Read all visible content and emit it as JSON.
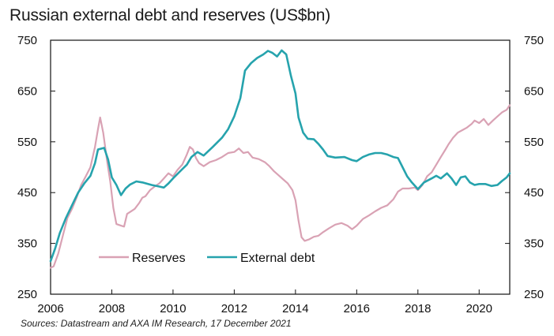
{
  "chart_data": {
    "type": "line",
    "title": "Russian external debt and reserves (US$bn)",
    "source": "Sources: Datastream and AXA IM Research, 17 December 2021",
    "xlim": [
      2006,
      2021
    ],
    "ylim": [
      250,
      750
    ],
    "x_ticks": [
      "2006",
      "2008",
      "2010",
      "2012",
      "2014",
      "2016",
      "2018",
      "2020"
    ],
    "y_ticks_left": [
      "750",
      "650",
      "550",
      "450",
      "350",
      "250"
    ],
    "y_ticks_right": [
      "750",
      "650",
      "550",
      "450",
      "350",
      "250"
    ],
    "legend_position": "bottom-left",
    "series": [
      {
        "name": "Reserves",
        "color": "#d9a2b4",
        "points": [
          [
            2006.0,
            302
          ],
          [
            2006.1,
            305
          ],
          [
            2006.25,
            330
          ],
          [
            2006.4,
            365
          ],
          [
            2006.55,
            400
          ],
          [
            2006.7,
            418
          ],
          [
            2006.85,
            440
          ],
          [
            2007.0,
            465
          ],
          [
            2007.15,
            482
          ],
          [
            2007.3,
            500
          ],
          [
            2007.45,
            540
          ],
          [
            2007.55,
            575
          ],
          [
            2007.62,
            598
          ],
          [
            2007.72,
            568
          ],
          [
            2007.85,
            510
          ],
          [
            2007.95,
            472
          ],
          [
            2008.05,
            420
          ],
          [
            2008.15,
            388
          ],
          [
            2008.3,
            385
          ],
          [
            2008.4,
            383
          ],
          [
            2008.5,
            408
          ],
          [
            2008.6,
            412
          ],
          [
            2008.75,
            418
          ],
          [
            2008.9,
            430
          ],
          [
            2009.0,
            440
          ],
          [
            2009.1,
            443
          ],
          [
            2009.25,
            455
          ],
          [
            2009.4,
            462
          ],
          [
            2009.55,
            468
          ],
          [
            2009.7,
            478
          ],
          [
            2009.85,
            488
          ],
          [
            2010.0,
            482
          ],
          [
            2010.15,
            495
          ],
          [
            2010.3,
            505
          ],
          [
            2010.45,
            525
          ],
          [
            2010.55,
            540
          ],
          [
            2010.65,
            535
          ],
          [
            2010.75,
            518
          ],
          [
            2010.85,
            508
          ],
          [
            2011.0,
            502
          ],
          [
            2011.2,
            510
          ],
          [
            2011.4,
            514
          ],
          [
            2011.6,
            520
          ],
          [
            2011.8,
            528
          ],
          [
            2012.0,
            530
          ],
          [
            2012.15,
            537
          ],
          [
            2012.3,
            528
          ],
          [
            2012.45,
            530
          ],
          [
            2012.6,
            519
          ],
          [
            2012.8,
            516
          ],
          [
            2013.0,
            510
          ],
          [
            2013.15,
            502
          ],
          [
            2013.3,
            492
          ],
          [
            2013.45,
            484
          ],
          [
            2013.6,
            476
          ],
          [
            2013.75,
            468
          ],
          [
            2013.9,
            455
          ],
          [
            2014.0,
            435
          ],
          [
            2014.1,
            395
          ],
          [
            2014.2,
            362
          ],
          [
            2014.3,
            355
          ],
          [
            2014.45,
            358
          ],
          [
            2014.6,
            363
          ],
          [
            2014.75,
            365
          ],
          [
            2014.9,
            372
          ],
          [
            2015.1,
            380
          ],
          [
            2015.3,
            387
          ],
          [
            2015.5,
            390
          ],
          [
            2015.7,
            385
          ],
          [
            2015.85,
            378
          ],
          [
            2016.0,
            385
          ],
          [
            2016.2,
            398
          ],
          [
            2016.4,
            405
          ],
          [
            2016.6,
            413
          ],
          [
            2016.8,
            420
          ],
          [
            2017.0,
            425
          ],
          [
            2017.2,
            437
          ],
          [
            2017.35,
            452
          ],
          [
            2017.5,
            458
          ],
          [
            2017.7,
            458
          ],
          [
            2017.9,
            460
          ],
          [
            2018.0,
            455
          ],
          [
            2018.15,
            465
          ],
          [
            2018.3,
            482
          ],
          [
            2018.45,
            490
          ],
          [
            2018.6,
            505
          ],
          [
            2018.75,
            520
          ],
          [
            2018.9,
            535
          ],
          [
            2019.0,
            545
          ],
          [
            2019.15,
            558
          ],
          [
            2019.3,
            568
          ],
          [
            2019.45,
            573
          ],
          [
            2019.6,
            578
          ],
          [
            2019.75,
            585
          ],
          [
            2019.85,
            592
          ],
          [
            2020.0,
            587
          ],
          [
            2020.15,
            595
          ],
          [
            2020.3,
            583
          ],
          [
            2020.45,
            592
          ],
          [
            2020.6,
            600
          ],
          [
            2020.75,
            608
          ],
          [
            2020.9,
            613
          ],
          [
            2021.0,
            622
          ]
        ]
      },
      {
        "name": "External debt",
        "color": "#26a3ad",
        "points": [
          [
            2006.0,
            315
          ],
          [
            2006.15,
            340
          ],
          [
            2006.3,
            370
          ],
          [
            2006.5,
            400
          ],
          [
            2006.7,
            425
          ],
          [
            2006.9,
            450
          ],
          [
            2007.1,
            468
          ],
          [
            2007.3,
            483
          ],
          [
            2007.45,
            508
          ],
          [
            2007.55,
            535
          ],
          [
            2007.75,
            538
          ],
          [
            2007.88,
            515
          ],
          [
            2008.0,
            480
          ],
          [
            2008.15,
            465
          ],
          [
            2008.3,
            445
          ],
          [
            2008.45,
            458
          ],
          [
            2008.6,
            466
          ],
          [
            2008.8,
            472
          ],
          [
            2009.0,
            470
          ],
          [
            2009.3,
            465
          ],
          [
            2009.55,
            462
          ],
          [
            2009.7,
            460
          ],
          [
            2009.85,
            468
          ],
          [
            2010.0,
            478
          ],
          [
            2010.25,
            493
          ],
          [
            2010.45,
            505
          ],
          [
            2010.6,
            520
          ],
          [
            2010.8,
            530
          ],
          [
            2011.0,
            523
          ],
          [
            2011.3,
            540
          ],
          [
            2011.6,
            558
          ],
          [
            2011.8,
            575
          ],
          [
            2012.0,
            600
          ],
          [
            2012.2,
            636
          ],
          [
            2012.35,
            690
          ],
          [
            2012.55,
            705
          ],
          [
            2012.75,
            715
          ],
          [
            2012.95,
            722
          ],
          [
            2013.1,
            729
          ],
          [
            2013.25,
            725
          ],
          [
            2013.4,
            718
          ],
          [
            2013.55,
            730
          ],
          [
            2013.7,
            722
          ],
          [
            2013.85,
            680
          ],
          [
            2014.0,
            645
          ],
          [
            2014.1,
            598
          ],
          [
            2014.25,
            568
          ],
          [
            2014.4,
            556
          ],
          [
            2014.6,
            555
          ],
          [
            2014.75,
            546
          ],
          [
            2014.9,
            535
          ],
          [
            2015.05,
            522
          ],
          [
            2015.3,
            519
          ],
          [
            2015.6,
            520
          ],
          [
            2015.85,
            514
          ],
          [
            2016.0,
            512
          ],
          [
            2016.2,
            520
          ],
          [
            2016.4,
            525
          ],
          [
            2016.6,
            528
          ],
          [
            2016.8,
            528
          ],
          [
            2017.0,
            525
          ],
          [
            2017.2,
            520
          ],
          [
            2017.35,
            518
          ],
          [
            2017.5,
            500
          ],
          [
            2017.65,
            482
          ],
          [
            2017.8,
            470
          ],
          [
            2018.0,
            457
          ],
          [
            2018.2,
            470
          ],
          [
            2018.45,
            478
          ],
          [
            2018.6,
            483
          ],
          [
            2018.75,
            478
          ],
          [
            2018.95,
            488
          ],
          [
            2019.1,
            478
          ],
          [
            2019.25,
            465
          ],
          [
            2019.4,
            480
          ],
          [
            2019.55,
            482
          ],
          [
            2019.7,
            470
          ],
          [
            2019.85,
            465
          ],
          [
            2020.0,
            467
          ],
          [
            2020.2,
            467
          ],
          [
            2020.4,
            463
          ],
          [
            2020.6,
            465
          ],
          [
            2020.75,
            473
          ],
          [
            2020.9,
            480
          ],
          [
            2021.0,
            488
          ]
        ]
      }
    ]
  }
}
